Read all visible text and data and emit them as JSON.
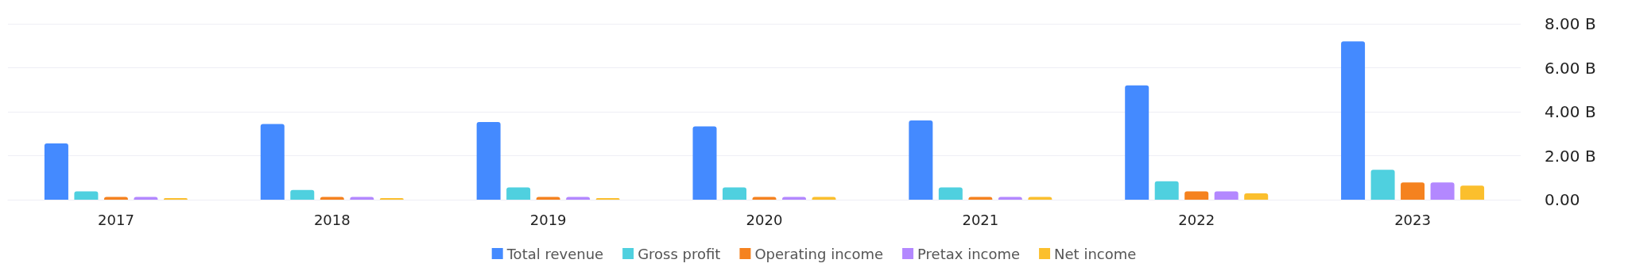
{
  "chart_data": {
    "type": "bar",
    "categories": [
      "2017",
      "2018",
      "2019",
      "2020",
      "2021",
      "2022",
      "2023"
    ],
    "series": [
      {
        "name": "Total revenue",
        "color": "#448aff",
        "values": [
          2.56,
          3.44,
          3.53,
          3.33,
          3.6,
          5.2,
          7.2
        ]
      },
      {
        "name": "Gross profit",
        "color": "#4fd0df",
        "values": [
          0.38,
          0.44,
          0.56,
          0.56,
          0.56,
          0.84,
          1.36
        ]
      },
      {
        "name": "Operating income",
        "color": "#f5821f",
        "values": [
          0.13,
          0.13,
          0.13,
          0.13,
          0.13,
          0.38,
          0.78
        ]
      },
      {
        "name": "Pretax income",
        "color": "#b388ff",
        "values": [
          0.13,
          0.13,
          0.13,
          0.13,
          0.13,
          0.38,
          0.78
        ]
      },
      {
        "name": "Net income",
        "color": "#fbbf2d",
        "values": [
          0.07,
          0.07,
          0.07,
          0.13,
          0.13,
          0.29,
          0.64
        ]
      }
    ],
    "ylim": [
      0,
      8
    ],
    "yticks": [
      {
        "value": 0,
        "label": "0.00"
      },
      {
        "value": 2,
        "label": "2.00 B"
      },
      {
        "value": 4,
        "label": "4.00 B"
      },
      {
        "value": 6,
        "label": "6.00 B"
      },
      {
        "value": 8,
        "label": "8.00 B"
      }
    ],
    "grid": "y",
    "legend": "bottom"
  }
}
